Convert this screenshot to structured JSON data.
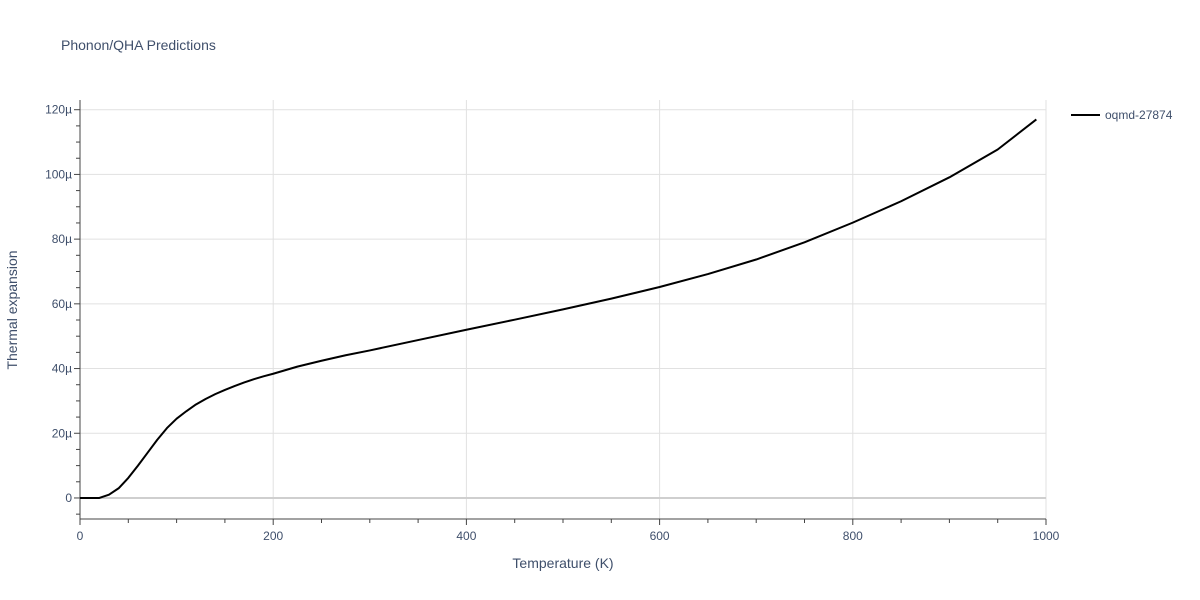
{
  "chart_data": {
    "type": "line",
    "title": "Phonon/QHA Predictions",
    "xlabel": "Temperature (K)",
    "ylabel": "Thermal expansion",
    "xlim": [
      0,
      1000
    ],
    "ylim": [
      -6.5e-06,
      0.000123
    ],
    "grid": true,
    "legend_position": "top-right",
    "x_ticks": [
      0,
      200,
      400,
      600,
      800,
      1000
    ],
    "x_tick_labels": [
      "0",
      "200",
      "400",
      "600",
      "800",
      "1000"
    ],
    "y_ticks": [
      0,
      2e-05,
      4e-05,
      6e-05,
      8e-05,
      0.0001,
      0.00012
    ],
    "y_tick_labels": [
      "0",
      "20µ",
      "40µ",
      "60µ",
      "80µ",
      "100µ",
      "120µ"
    ],
    "series": [
      {
        "name": "oqmd-27874",
        "color": "#000000",
        "x": [
          0,
          10,
          20,
          30,
          40,
          50,
          60,
          70,
          80,
          90,
          100,
          110,
          120,
          130,
          140,
          150,
          160,
          170,
          180,
          190,
          200,
          225,
          250,
          275,
          300,
          350,
          400,
          450,
          500,
          550,
          600,
          650,
          700,
          750,
          800,
          850,
          900,
          950,
          990
        ],
        "y": [
          0,
          0,
          0,
          1e-06,
          3e-06,
          6.2e-06,
          1e-05,
          1.4e-05,
          1.8e-05,
          2.16e-05,
          2.45e-05,
          2.68e-05,
          2.89e-05,
          3.06e-05,
          3.21e-05,
          3.34e-05,
          3.46e-05,
          3.57e-05,
          3.67e-05,
          3.76e-05,
          3.84e-05,
          4.06e-05,
          4.24e-05,
          4.41e-05,
          4.56e-05,
          4.88e-05,
          5.2e-05,
          5.51e-05,
          5.83e-05,
          6.16e-05,
          6.52e-05,
          6.92e-05,
          7.37e-05,
          7.9e-05,
          8.51e-05,
          9.17e-05,
          9.91e-05,
          0.0001077,
          0.000117
        ]
      }
    ]
  }
}
